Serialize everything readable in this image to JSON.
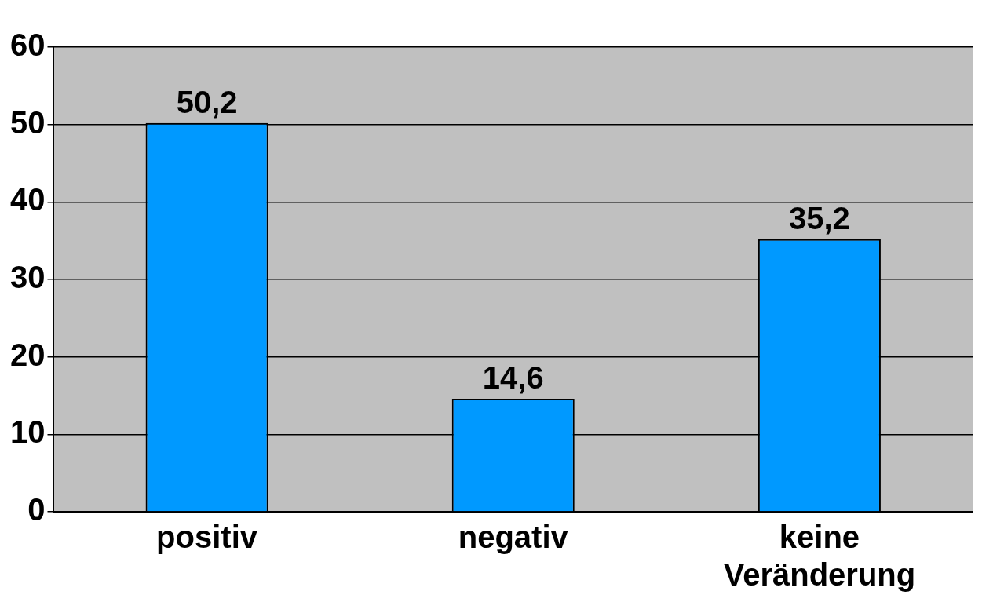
{
  "chart_data": {
    "type": "bar",
    "categories": [
      "positiv",
      "negativ",
      "keine Veränderung"
    ],
    "values": [
      50.2,
      14.6,
      35.2
    ],
    "value_labels": [
      "50,2",
      "14,6",
      "35,2"
    ],
    "color": "#0099ff",
    "ylim": [
      0,
      60
    ],
    "yticks": [
      0,
      10,
      20,
      30,
      40,
      50,
      60
    ],
    "grid": "y",
    "legend": false
  }
}
